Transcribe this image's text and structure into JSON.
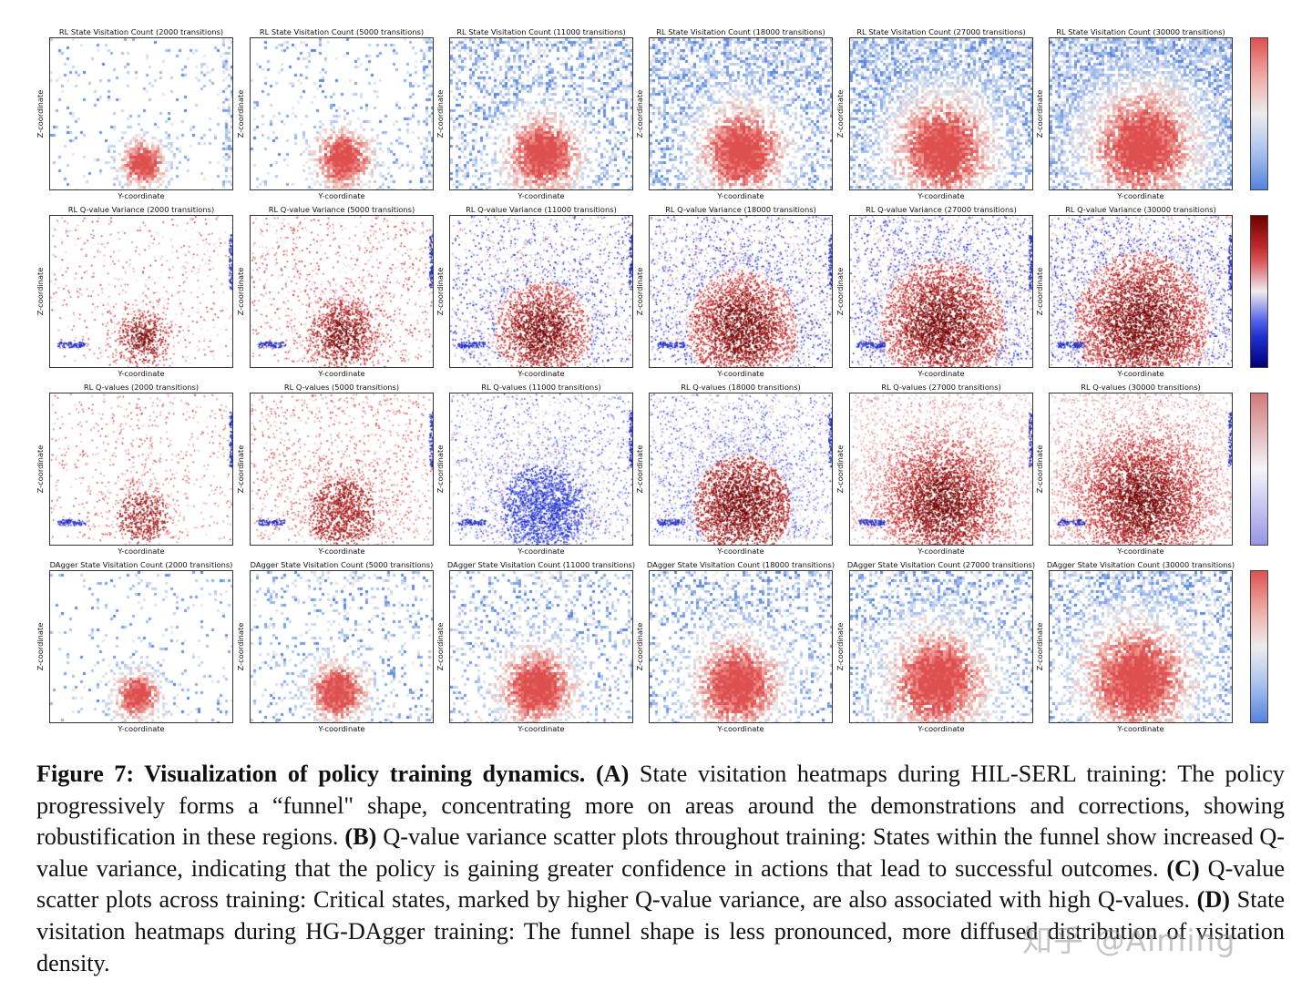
{
  "figure": {
    "rows": [
      {
        "id": "A",
        "kind": "heatmap",
        "palette": "coolwarm",
        "titles": [
          "RL State Visitation Count (2000 transitions)",
          "RL State Visitation Count (5000 transitions)",
          "RL State Visitation Count (11000 transitions)",
          "RL State Visitation Count (18000 transitions)",
          "RL State Visitation Count (27000 transitions)",
          "RL State Visitation Count (30000 transitions)"
        ]
      },
      {
        "id": "B",
        "kind": "scatter",
        "palette": "seismic",
        "titles": [
          "RL Q-value Variance (2000 transitions)",
          "RL Q-value Variance (5000 transitions)",
          "RL Q-value Variance (11000 transitions)",
          "RL Q-value Variance (18000 transitions)",
          "RL Q-value Variance (27000 transitions)",
          "RL Q-value Variance (30000 transitions)"
        ]
      },
      {
        "id": "C",
        "kind": "scatter",
        "palette": "qvalue",
        "titles": [
          "RL Q-values (2000 transitions)",
          "RL Q-values (5000 transitions)",
          "RL Q-values (11000 transitions)",
          "RL Q-values (18000 transitions)",
          "RL Q-values (27000 transitions)",
          "RL Q-values (30000 transitions)"
        ]
      },
      {
        "id": "D",
        "kind": "heatmap",
        "palette": "coolwarm",
        "titles": [
          "DAgger State Visitation Count (2000 transitions)",
          "DAgger State Visitation Count (5000 transitions)",
          "DAgger State Visitation Count (11000 transitions)",
          "DAgger State Visitation Count (18000 transitions)",
          "DAgger State Visitation Count (27000 transitions)",
          "DAgger State Visitation Count (30000 transitions)"
        ]
      }
    ],
    "xlabel": "Y-coordinate",
    "ylabel": "Z-coordinate"
  },
  "caption": {
    "label": "Figure 7: Visualization of policy training dynamics.",
    "a_tag": "(A)",
    "a_text": "State visitation heatmaps during HIL-SERL training: The policy progressively forms a “funnel\" shape, concentrating more on areas around the demonstrations and corrections, showing robustification in these regions.",
    "b_tag": "(B)",
    "b_text": "Q-value variance scatter plots throughout training: States within the funnel show increased Q-value variance, indicating that the policy is gaining greater confidence in actions that lead to successful outcomes.",
    "c_tag": "(C)",
    "c_text": "Q-value scatter plots across training: Critical states, marked by higher Q-value variance, are also associated with high Q-values.",
    "d_tag": "(D)",
    "d_text": "State visitation heatmaps during HG-DAgger training: The funnel shape is less pronounced, more diffused distribution of visitation density."
  },
  "watermark": "知乎 @Aiming",
  "colors": {
    "red": "#c0282d",
    "blue": "#3b4cc0",
    "darkred": "#6b0000",
    "darkblue": "#00007a",
    "text": "#111111"
  }
}
